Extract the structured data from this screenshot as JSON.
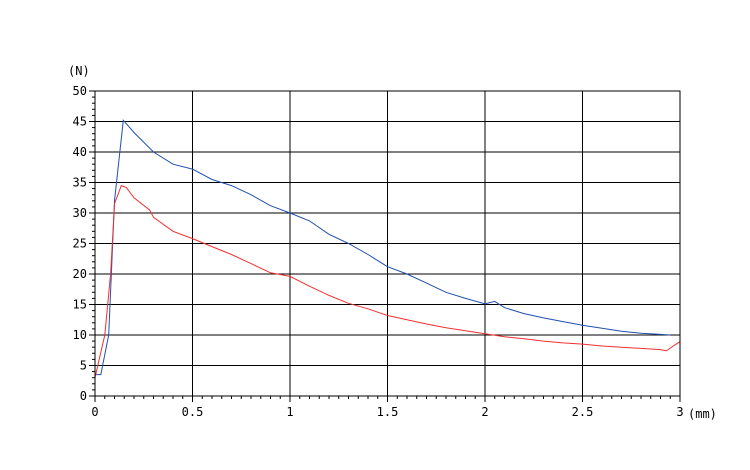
{
  "chart_data": {
    "type": "line",
    "title": "",
    "xlabel": "(mm)",
    "ylabel": "(N)",
    "xlim": [
      0,
      3
    ],
    "ylim": [
      0,
      50
    ],
    "x_ticks": [
      "0",
      "0.5",
      "1",
      "1.5",
      "2",
      "2.5",
      "3"
    ],
    "x_tick_values": [
      0,
      0.5,
      1,
      1.5,
      2,
      2.5,
      3
    ],
    "y_ticks": [
      "0",
      "5",
      "10",
      "15",
      "20",
      "25",
      "30",
      "35",
      "40",
      "45",
      "50"
    ],
    "y_tick_values": [
      0,
      5,
      10,
      15,
      20,
      25,
      30,
      35,
      40,
      45,
      50
    ],
    "grid": true,
    "legend": "none",
    "series": [
      {
        "color": "#2050b0",
        "x": [
          0,
          0.03,
          0.07,
          0.1,
          0.145,
          0.2,
          0.3,
          0.4,
          0.5,
          0.6,
          0.7,
          0.8,
          0.9,
          1.0,
          1.1,
          1.2,
          1.3,
          1.4,
          1.5,
          1.6,
          1.7,
          1.8,
          1.9,
          2.0,
          2.05,
          2.1,
          2.2,
          2.3,
          2.4,
          2.5,
          2.6,
          2.7,
          2.8,
          2.9,
          2.95
        ],
        "y": [
          3.5,
          3.5,
          10,
          32,
          45.2,
          43.2,
          40,
          38,
          37.2,
          35.5,
          34.5,
          33,
          31.2,
          30,
          28.7,
          26.5,
          25,
          23.2,
          21.2,
          20,
          18.5,
          17,
          16,
          15.1,
          15.5,
          14.5,
          13.5,
          12.8,
          12.2,
          11.6,
          11.1,
          10.6,
          10.3,
          10.1,
          10
        ]
      },
      {
        "color": "#f03030",
        "x": [
          0,
          0.05,
          0.08,
          0.1,
          0.135,
          0.16,
          0.2,
          0.28,
          0.3,
          0.4,
          0.5,
          0.6,
          0.7,
          0.8,
          0.9,
          1.0,
          1.1,
          1.2,
          1.3,
          1.4,
          1.5,
          1.6,
          1.7,
          1.8,
          1.9,
          2.0,
          2.1,
          2.2,
          2.3,
          2.4,
          2.5,
          2.6,
          2.7,
          2.8,
          2.9,
          2.93,
          2.97,
          3.0
        ],
        "y": [
          3,
          10,
          20,
          31.5,
          34.5,
          34.2,
          32.5,
          30.5,
          29.3,
          27,
          25.8,
          24.5,
          23.2,
          21.7,
          20.2,
          19.6,
          18,
          16.5,
          15.2,
          14.3,
          13.2,
          12.5,
          11.8,
          11.2,
          10.7,
          10.2,
          9.7,
          9.4,
          9.0,
          8.7,
          8.5,
          8.2,
          8.0,
          7.8,
          7.6,
          7.4,
          8.3,
          8.9
        ]
      }
    ]
  }
}
